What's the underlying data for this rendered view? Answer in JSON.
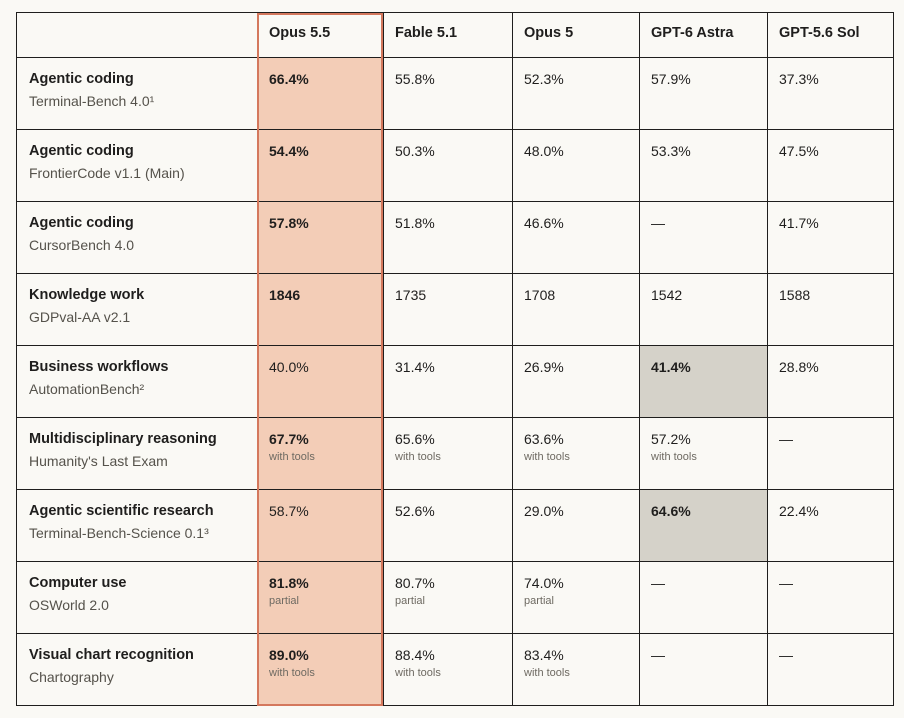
{
  "columns": [
    "Opus 5.5",
    "Fable 5.1",
    "Opus 5",
    "GPT-6 Astra",
    "GPT-5.6 Sol"
  ],
  "rows": [
    {
      "benchmark": "Agentic coding",
      "sub": "Terminal-Bench 4.0¹",
      "values": [
        {
          "v": "66.4%",
          "n": ""
        },
        {
          "v": "55.8%",
          "n": ""
        },
        {
          "v": "52.3%",
          "n": ""
        },
        {
          "v": "57.9%",
          "n": ""
        },
        {
          "v": "37.3%",
          "n": ""
        }
      ],
      "best": 0
    },
    {
      "benchmark": "Agentic coding",
      "sub": "FrontierCode v1.1 (Main)",
      "values": [
        {
          "v": "54.4%",
          "n": ""
        },
        {
          "v": "50.3%",
          "n": ""
        },
        {
          "v": "48.0%",
          "n": ""
        },
        {
          "v": "53.3%",
          "n": ""
        },
        {
          "v": "47.5%",
          "n": ""
        }
      ],
      "best": 0
    },
    {
      "benchmark": "Agentic coding",
      "sub": "CursorBench 4.0",
      "values": [
        {
          "v": "57.8%",
          "n": ""
        },
        {
          "v": "51.8%",
          "n": ""
        },
        {
          "v": "46.6%",
          "n": ""
        },
        {
          "v": "—",
          "n": ""
        },
        {
          "v": "41.7%",
          "n": ""
        }
      ],
      "best": 0
    },
    {
      "benchmark": "Knowledge work",
      "sub": "GDPval-AA v2.1",
      "values": [
        {
          "v": "1846",
          "n": ""
        },
        {
          "v": "1735",
          "n": ""
        },
        {
          "v": "1708",
          "n": ""
        },
        {
          "v": "1542",
          "n": ""
        },
        {
          "v": "1588",
          "n": ""
        }
      ],
      "best": 0
    },
    {
      "benchmark": "Business workflows",
      "sub": "AutomationBench²",
      "values": [
        {
          "v": "40.0%",
          "n": ""
        },
        {
          "v": "31.4%",
          "n": ""
        },
        {
          "v": "26.9%",
          "n": ""
        },
        {
          "v": "41.4%",
          "n": ""
        },
        {
          "v": "28.8%",
          "n": ""
        }
      ],
      "best": 3
    },
    {
      "benchmark": "Multidisciplinary reasoning",
      "sub": "Humanity's Last Exam",
      "values": [
        {
          "v": "67.7%",
          "n": "with tools"
        },
        {
          "v": "65.6%",
          "n": "with tools"
        },
        {
          "v": "63.6%",
          "n": "with tools"
        },
        {
          "v": "57.2%",
          "n": "with tools"
        },
        {
          "v": "—",
          "n": ""
        }
      ],
      "best": 0
    },
    {
      "benchmark": "Agentic scientific research",
      "sub": "Terminal-Bench-Science 0.1³",
      "values": [
        {
          "v": "58.7%",
          "n": ""
        },
        {
          "v": "52.6%",
          "n": ""
        },
        {
          "v": "29.0%",
          "n": ""
        },
        {
          "v": "64.6%",
          "n": ""
        },
        {
          "v": "22.4%",
          "n": ""
        }
      ],
      "best": 3
    },
    {
      "benchmark": "Computer use",
      "sub": "OSWorld 2.0",
      "values": [
        {
          "v": "81.8%",
          "n": "partial"
        },
        {
          "v": "80.7%",
          "n": "partial"
        },
        {
          "v": "74.0%",
          "n": "partial"
        },
        {
          "v": "—",
          "n": ""
        },
        {
          "v": "—",
          "n": ""
        }
      ],
      "best": 0
    },
    {
      "benchmark": "Visual chart recognition",
      "sub": "Chartography",
      "values": [
        {
          "v": "89.0%",
          "n": "with tools"
        },
        {
          "v": "88.4%",
          "n": "with tools"
        },
        {
          "v": "83.4%",
          "n": "with tools"
        },
        {
          "v": "—",
          "n": ""
        },
        {
          "v": "—",
          "n": ""
        }
      ],
      "best": 0
    }
  ],
  "colors": {
    "opus_highlight_fill": "#f3cdb7",
    "opus_highlight_border": "#d4785d",
    "competitor_best_fill": "#d5d2c9"
  }
}
